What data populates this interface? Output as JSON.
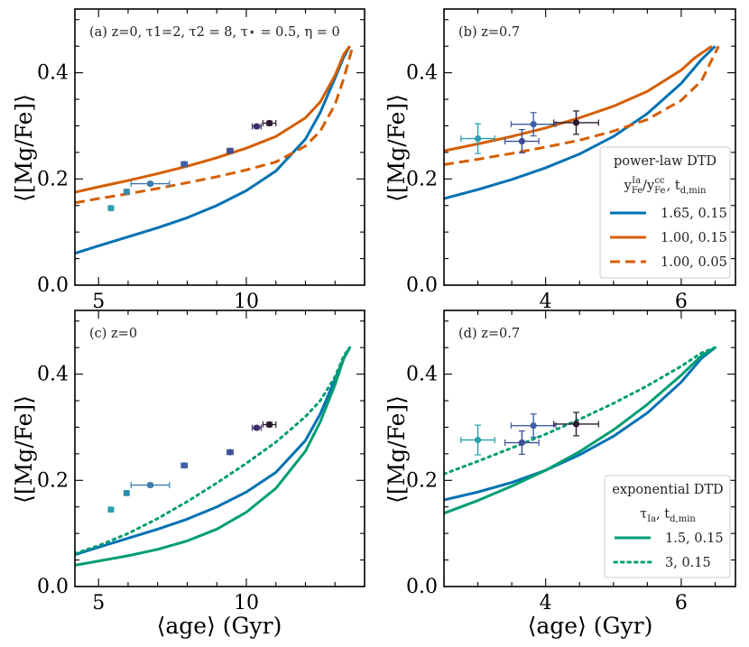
{
  "figure": {
    "ylabel": "⟨[Mg/Fe]⟩",
    "xlabel": "⟨age⟩ (Gyr)"
  },
  "legends": {
    "powerlaw": {
      "title": "power-law DTD",
      "subtitle": "y_Fe^Ia / y_Fe^cc, t_d,min",
      "entries": [
        {
          "label": "1.65, 0.15",
          "color": "#0072b2",
          "style": "solid"
        },
        {
          "label": "1.00, 0.15",
          "color": "#d55e00",
          "style": "solid"
        },
        {
          "label": "1.00, 0.05",
          "color": "#d55e00",
          "style": "dashed"
        }
      ]
    },
    "exponential": {
      "title": "exponential DTD",
      "subtitle": "τ_Ia, t_d,min",
      "entries": [
        {
          "label": "1.5, 0.15",
          "color": "#009e73",
          "style": "solid"
        },
        {
          "label": "3, 0.15",
          "color": "#009e73",
          "style": "dotted"
        }
      ]
    }
  },
  "chart_data": [
    {
      "panel": "a",
      "type": "line",
      "annotation": "(a) z=0, τ1=2, τ2 = 8, τ⋆ = 0.5, η = 0",
      "xlim": [
        4.2,
        14.0
      ],
      "ylim": [
        0,
        0.52
      ],
      "xticks": [
        5,
        10
      ],
      "yticks": [
        0.0,
        0.2,
        0.4
      ],
      "series": [
        {
          "name": "1.65, 0.15",
          "color": "#0072b2",
          "style": "solid",
          "x": [
            4.2,
            5,
            6,
            7,
            8,
            9,
            10,
            11,
            12,
            12.5,
            13,
            13.3,
            13.5
          ],
          "y": [
            0.06,
            0.074,
            0.091,
            0.108,
            0.127,
            0.15,
            0.178,
            0.215,
            0.275,
            0.325,
            0.39,
            0.43,
            0.45
          ]
        },
        {
          "name": "1.00, 0.15",
          "color": "#d55e00",
          "style": "solid",
          "x": [
            4.2,
            5,
            6,
            7,
            8,
            9,
            10,
            11,
            12,
            12.5,
            13,
            13.3,
            13.5
          ],
          "y": [
            0.175,
            0.185,
            0.197,
            0.21,
            0.224,
            0.24,
            0.258,
            0.28,
            0.315,
            0.345,
            0.395,
            0.435,
            0.45
          ]
        },
        {
          "name": "1.00, 0.05",
          "color": "#d55e00",
          "style": "dashed",
          "x": [
            4.2,
            5,
            6,
            7,
            8,
            9,
            10,
            11,
            12,
            12.5,
            13,
            13.3,
            13.6
          ],
          "y": [
            0.155,
            0.163,
            0.172,
            0.182,
            0.193,
            0.204,
            0.217,
            0.232,
            0.262,
            0.29,
            0.34,
            0.39,
            0.45
          ]
        }
      ],
      "points": [
        {
          "x": 5.42,
          "y": 0.145,
          "xerr": 0.08,
          "yerr": 0.003,
          "color": "#2b9fb0"
        },
        {
          "x": 5.95,
          "y": 0.176,
          "xerr": 0.08,
          "yerr": 0.003,
          "color": "#2f8bb0"
        },
        {
          "x": 6.75,
          "y": 0.191,
          "xerr": 0.65,
          "yerr": 0.003,
          "color": "#3a7bb0"
        },
        {
          "x": 7.9,
          "y": 0.228,
          "xerr": 0.1,
          "yerr": 0.003,
          "color": "#3d5ea8"
        },
        {
          "x": 9.45,
          "y": 0.253,
          "xerr": 0.1,
          "yerr": 0.003,
          "color": "#3f4d96"
        },
        {
          "x": 10.35,
          "y": 0.299,
          "xerr": 0.15,
          "yerr": 0.003,
          "color": "#3b2d6b"
        },
        {
          "x": 10.78,
          "y": 0.305,
          "xerr": 0.22,
          "yerr": 0.004,
          "color": "#2b1830"
        }
      ]
    },
    {
      "panel": "b",
      "type": "line",
      "annotation": "(b) z=0.7",
      "xlim": [
        2.5,
        6.8
      ],
      "ylim": [
        0,
        0.52
      ],
      "xticks": [
        4,
        6
      ],
      "yticks": [
        0.0,
        0.2,
        0.4
      ],
      "series": [
        {
          "name": "1.65, 0.15",
          "color": "#0072b2",
          "style": "solid",
          "x": [
            2.5,
            3,
            3.5,
            4,
            4.5,
            5,
            5.5,
            6,
            6.3,
            6.5
          ],
          "y": [
            0.163,
            0.18,
            0.199,
            0.221,
            0.247,
            0.28,
            0.323,
            0.38,
            0.425,
            0.45
          ]
        },
        {
          "name": "1.00, 0.15",
          "color": "#d55e00",
          "style": "solid",
          "x": [
            2.5,
            3,
            3.5,
            4,
            4.5,
            5,
            5.5,
            6,
            6.2,
            6.45
          ],
          "y": [
            0.253,
            0.266,
            0.28,
            0.296,
            0.315,
            0.337,
            0.365,
            0.405,
            0.428,
            0.45
          ]
        },
        {
          "name": "1.00, 0.05",
          "color": "#d55e00",
          "style": "dashed",
          "x": [
            2.5,
            3,
            3.5,
            4,
            4.5,
            5,
            5.5,
            6,
            6.3,
            6.55
          ],
          "y": [
            0.227,
            0.237,
            0.248,
            0.26,
            0.273,
            0.29,
            0.312,
            0.348,
            0.385,
            0.45
          ]
        }
      ],
      "points": [
        {
          "x": 3.0,
          "y": 0.276,
          "xerr": 0.25,
          "yerr": 0.028,
          "color": "#2b9fb0"
        },
        {
          "x": 3.65,
          "y": 0.271,
          "xerr": 0.25,
          "yerr": 0.022,
          "color": "#3f4d96"
        },
        {
          "x": 3.82,
          "y": 0.303,
          "xerr": 0.33,
          "yerr": 0.022,
          "color": "#3d5ea8"
        },
        {
          "x": 4.45,
          "y": 0.306,
          "xerr": 0.33,
          "yerr": 0.022,
          "color": "#2b1830"
        }
      ]
    },
    {
      "panel": "c",
      "type": "line",
      "annotation": "(c) z=0",
      "xlim": [
        4.2,
        14.0
      ],
      "ylim": [
        0,
        0.52
      ],
      "xticks": [
        5,
        10
      ],
      "yticks": [
        0.0,
        0.2,
        0.4
      ],
      "series": [
        {
          "name": "1.65, 0.15",
          "color": "#0072b2",
          "style": "solid",
          "x": [
            4.2,
            5,
            6,
            7,
            8,
            9,
            10,
            11,
            12,
            12.5,
            13,
            13.3,
            13.5
          ],
          "y": [
            0.06,
            0.074,
            0.091,
            0.108,
            0.127,
            0.15,
            0.178,
            0.215,
            0.275,
            0.325,
            0.39,
            0.43,
            0.45
          ]
        },
        {
          "name": "1.5, 0.15",
          "color": "#009e73",
          "style": "solid",
          "x": [
            4.2,
            5,
            6,
            7,
            8,
            9,
            10,
            11,
            12,
            12.5,
            13,
            13.3,
            13.5
          ],
          "y": [
            0.04,
            0.048,
            0.058,
            0.07,
            0.086,
            0.108,
            0.14,
            0.185,
            0.255,
            0.31,
            0.38,
            0.43,
            0.45
          ]
        },
        {
          "name": "3, 0.15",
          "color": "#009e73",
          "style": "dotted",
          "x": [
            4.2,
            5,
            6,
            7,
            8,
            9,
            10,
            11,
            12,
            12.5,
            13,
            13.3,
            13.5
          ],
          "y": [
            0.062,
            0.077,
            0.1,
            0.128,
            0.16,
            0.195,
            0.232,
            0.272,
            0.32,
            0.35,
            0.395,
            0.435,
            0.45
          ]
        }
      ],
      "points": [
        {
          "x": 5.42,
          "y": 0.145,
          "xerr": 0.08,
          "yerr": 0.003,
          "color": "#2b9fb0"
        },
        {
          "x": 5.95,
          "y": 0.176,
          "xerr": 0.08,
          "yerr": 0.003,
          "color": "#2f8bb0"
        },
        {
          "x": 6.75,
          "y": 0.191,
          "xerr": 0.65,
          "yerr": 0.003,
          "color": "#3a7bb0"
        },
        {
          "x": 7.9,
          "y": 0.228,
          "xerr": 0.1,
          "yerr": 0.003,
          "color": "#3d5ea8"
        },
        {
          "x": 9.45,
          "y": 0.253,
          "xerr": 0.1,
          "yerr": 0.003,
          "color": "#3f4d96"
        },
        {
          "x": 10.35,
          "y": 0.299,
          "xerr": 0.15,
          "yerr": 0.003,
          "color": "#3b2d6b"
        },
        {
          "x": 10.78,
          "y": 0.305,
          "xerr": 0.22,
          "yerr": 0.004,
          "color": "#2b1830"
        }
      ]
    },
    {
      "panel": "d",
      "type": "line",
      "annotation": "(d) z=0.7",
      "xlim": [
        2.5,
        6.8
      ],
      "ylim": [
        0,
        0.52
      ],
      "xticks": [
        4,
        6
      ],
      "yticks": [
        0.0,
        0.2,
        0.4
      ],
      "series": [
        {
          "name": "1.65, 0.15",
          "color": "#0072b2",
          "style": "solid",
          "x": [
            2.5,
            3,
            3.5,
            4,
            4.5,
            5,
            5.5,
            6,
            6.3,
            6.5
          ],
          "y": [
            0.163,
            0.178,
            0.196,
            0.219,
            0.248,
            0.283,
            0.327,
            0.385,
            0.43,
            0.45
          ]
        },
        {
          "name": "1.5, 0.15",
          "color": "#009e73",
          "style": "solid",
          "x": [
            2.5,
            3,
            3.5,
            4,
            4.5,
            5,
            5.5,
            6,
            6.3,
            6.5
          ],
          "y": [
            0.138,
            0.162,
            0.189,
            0.219,
            0.254,
            0.295,
            0.343,
            0.398,
            0.435,
            0.45
          ]
        },
        {
          "name": "3, 0.15",
          "color": "#009e73",
          "style": "dotted",
          "x": [
            2.5,
            3,
            3.5,
            4,
            4.5,
            5,
            5.5,
            6,
            6.3,
            6.5
          ],
          "y": [
            0.212,
            0.236,
            0.261,
            0.287,
            0.315,
            0.345,
            0.378,
            0.415,
            0.44,
            0.45
          ]
        }
      ],
      "points": [
        {
          "x": 3.0,
          "y": 0.276,
          "xerr": 0.25,
          "yerr": 0.028,
          "color": "#2b9fb0"
        },
        {
          "x": 3.65,
          "y": 0.271,
          "xerr": 0.25,
          "yerr": 0.022,
          "color": "#3f4d96"
        },
        {
          "x": 3.82,
          "y": 0.303,
          "xerr": 0.33,
          "yerr": 0.022,
          "color": "#3d5ea8"
        },
        {
          "x": 4.45,
          "y": 0.306,
          "xerr": 0.33,
          "yerr": 0.022,
          "color": "#2b1830"
        }
      ]
    }
  ]
}
